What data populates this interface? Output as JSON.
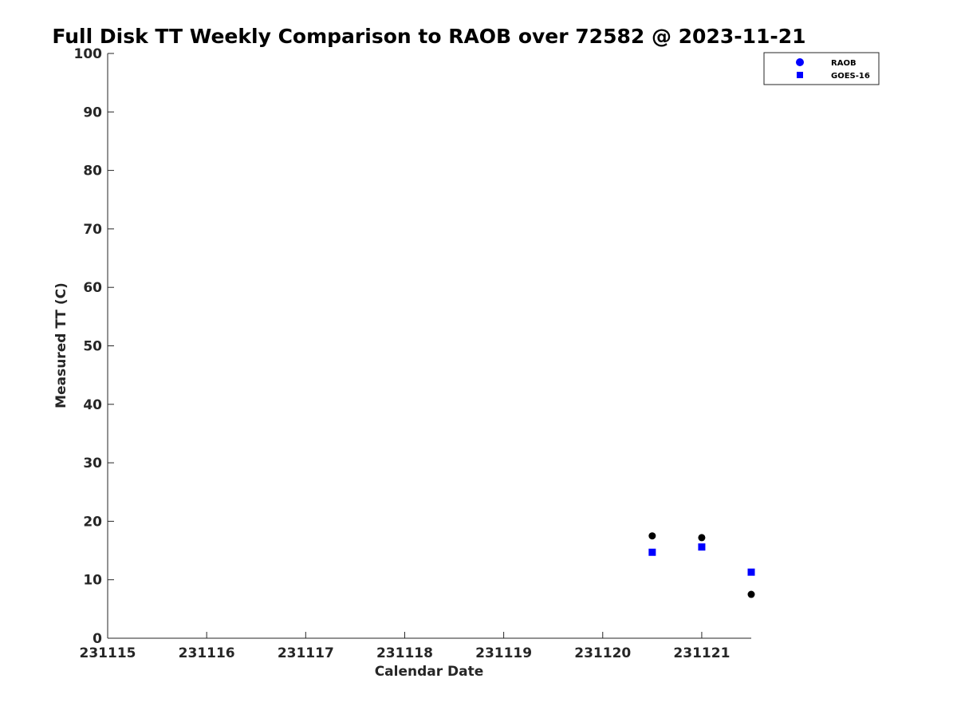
{
  "chart_data": {
    "type": "scatter",
    "title": "Full Disk TT Weekly Comparison to RAOB over 72582 @ 2023-11-21",
    "xlabel": "Calendar Date",
    "ylabel": "Measured TT (C)",
    "xlim": [
      0,
      6.5
    ],
    "ylim": [
      0,
      100
    ],
    "x_ticks": [
      {
        "value": 0,
        "label": "231115"
      },
      {
        "value": 1,
        "label": "231116"
      },
      {
        "value": 2,
        "label": "231117"
      },
      {
        "value": 3,
        "label": "231118"
      },
      {
        "value": 4,
        "label": "231119"
      },
      {
        "value": 5,
        "label": "231120"
      },
      {
        "value": 6,
        "label": "231121"
      }
    ],
    "y_ticks": [
      0,
      10,
      20,
      30,
      40,
      50,
      60,
      70,
      80,
      90,
      100
    ],
    "grid": false,
    "legend_position": "top-right",
    "series": [
      {
        "name": "RAOB",
        "marker": "circle",
        "color": "#000000",
        "legend_color": "#0000ff",
        "x": [
          5.5,
          6.0,
          6.5
        ],
        "y": [
          17.5,
          17.2,
          7.5
        ]
      },
      {
        "name": "GOES-16",
        "marker": "square",
        "color": "#0000ff",
        "legend_color": "#0000ff",
        "x": [
          5.5,
          6.0,
          6.5
        ],
        "y": [
          14.7,
          15.6,
          11.3
        ]
      }
    ]
  }
}
